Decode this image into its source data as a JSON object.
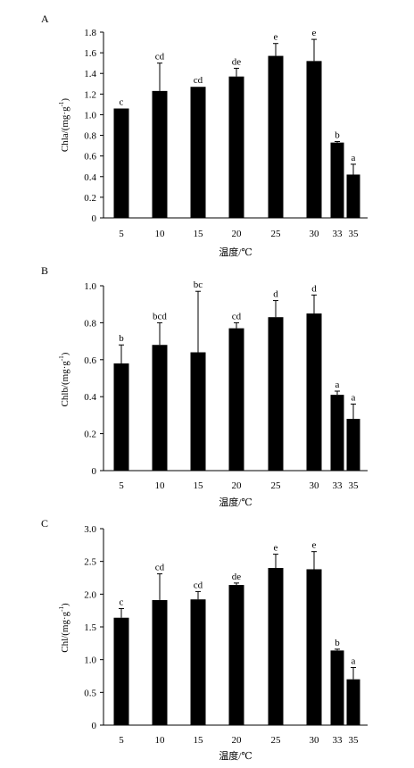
{
  "chart_data": [
    {
      "panel": "A",
      "type": "bar",
      "categories": [
        "5",
        "10",
        "15",
        "20",
        "25",
        "30",
        "33",
        "35"
      ],
      "values": [
        1.06,
        1.23,
        1.27,
        1.37,
        1.57,
        1.52,
        0.73,
        0.42
      ],
      "errors": [
        0.0,
        0.27,
        0.0,
        0.08,
        0.12,
        0.21,
        0.01,
        0.1
      ],
      "significance": [
        "c",
        "cd",
        "cd",
        "de",
        "e",
        "e",
        "b",
        "a"
      ],
      "ylabel": "Chla/(mg·g",
      "ylabel_sup": "-1",
      "ylabel_close": ")",
      "xlabel": "温度/℃",
      "ylim": [
        0,
        1.8
      ],
      "yticks": [
        "0",
        "0.2",
        "0.4",
        "0.6",
        "0.8",
        "1.0",
        "1.2",
        "1.4",
        "1.6",
        "1.8"
      ]
    },
    {
      "panel": "B",
      "type": "bar",
      "categories": [
        "5",
        "10",
        "15",
        "20",
        "25",
        "30",
        "33",
        "35"
      ],
      "values": [
        0.58,
        0.68,
        0.64,
        0.77,
        0.83,
        0.85,
        0.41,
        0.28
      ],
      "errors": [
        0.1,
        0.12,
        0.33,
        0.03,
        0.09,
        0.1,
        0.02,
        0.08
      ],
      "significance": [
        "b",
        "bcd",
        "bc",
        "cd",
        "d",
        "d",
        "a",
        "a"
      ],
      "ylabel": "Chlb/(mg·g",
      "ylabel_sup": "-1",
      "ylabel_close": ")",
      "xlabel": "温度/℃",
      "ylim": [
        0,
        1.0
      ],
      "yticks": [
        "0",
        "0.2",
        "0.4",
        "0.6",
        "0.8",
        "1.0"
      ]
    },
    {
      "panel": "C",
      "type": "bar",
      "categories": [
        "5",
        "10",
        "15",
        "20",
        "25",
        "30",
        "33",
        "35"
      ],
      "values": [
        1.64,
        1.91,
        1.92,
        2.14,
        2.4,
        2.38,
        1.14,
        0.7
      ],
      "errors": [
        0.14,
        0.4,
        0.12,
        0.03,
        0.21,
        0.27,
        0.02,
        0.18
      ],
      "significance": [
        "c",
        "cd",
        "cd",
        "de",
        "e",
        "e",
        "b",
        "a"
      ],
      "ylabel": "Chl/(mg·g",
      "ylabel_sup": "-1",
      "ylabel_close": ")",
      "xlabel": "温度/℃",
      "ylim": [
        0,
        3.0
      ],
      "yticks": [
        "0",
        "0.5",
        "1.0",
        "1.5",
        "2.0",
        "2.5",
        "3.0"
      ]
    }
  ]
}
